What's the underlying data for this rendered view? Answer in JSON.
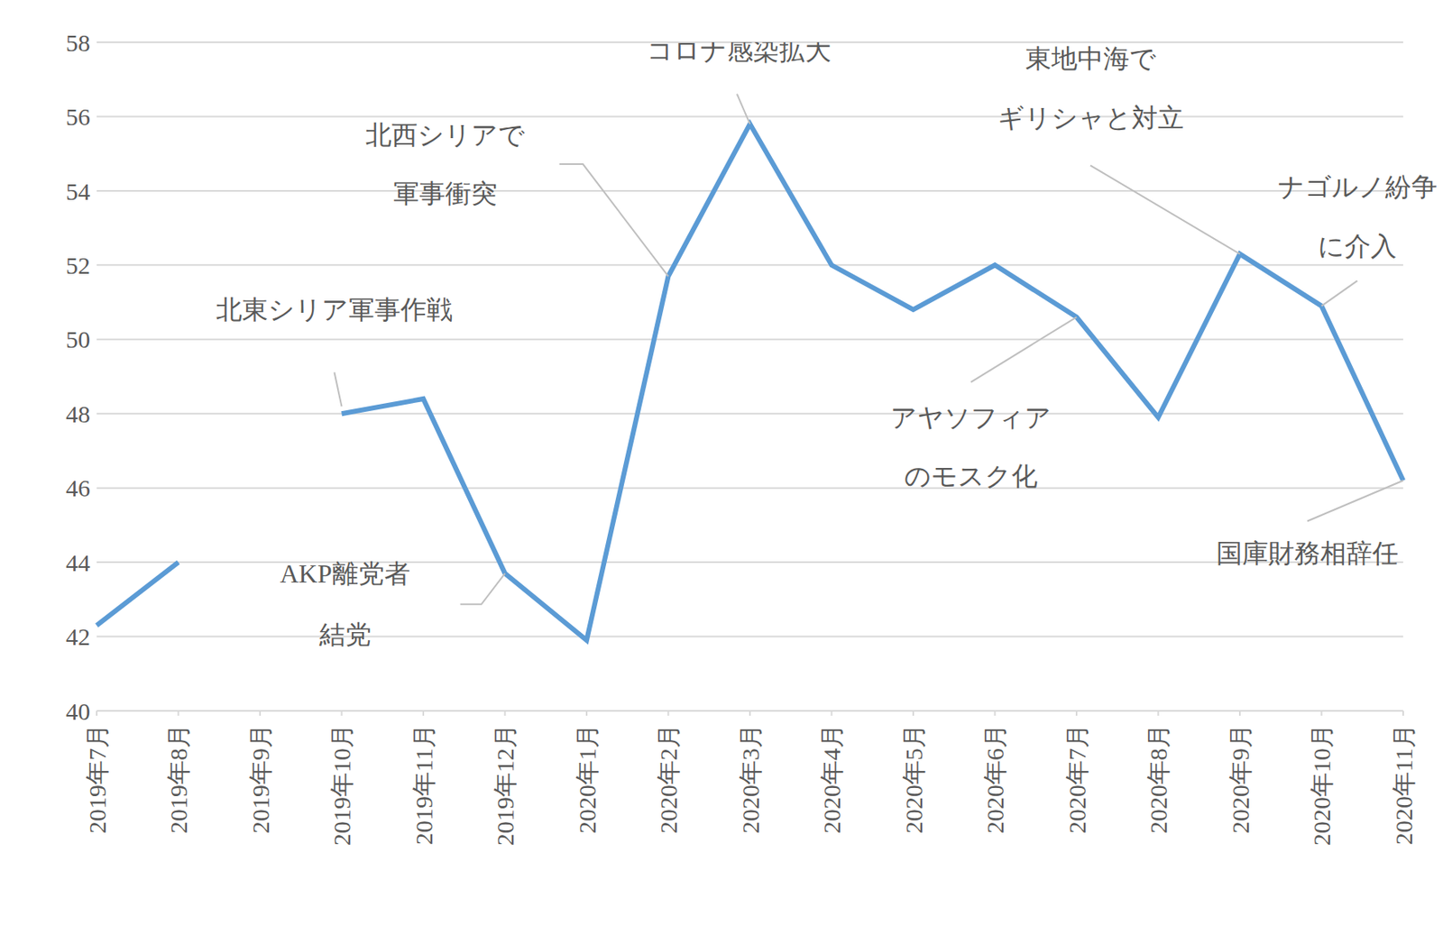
{
  "chart_data": {
    "type": "line",
    "categories": [
      "2019年7月",
      "2019年8月",
      "2019年9月",
      "2019年10月",
      "2019年11月",
      "2019年12月",
      "2020年1月",
      "2020年2月",
      "2020年3月",
      "2020年4月",
      "2020年5月",
      "2020年6月",
      "2020年7月",
      "2020年8月",
      "2020年9月",
      "2020年10月",
      "2020年11月"
    ],
    "values": [
      42.3,
      44.0,
      null,
      48.0,
      48.4,
      43.7,
      41.9,
      51.7,
      55.8,
      52.0,
      50.8,
      52.0,
      50.6,
      47.9,
      52.3,
      50.9,
      46.2
    ],
    "color": "#5b9bd5",
    "ylim": [
      40,
      58
    ],
    "yticks": [
      40,
      42,
      44,
      46,
      48,
      50,
      52,
      54,
      56,
      58
    ],
    "grid": true,
    "annotations": [
      {
        "text": "北東シリア軍事作戦",
        "x": "2019年10月"
      },
      {
        "text": "AKP離党者\n結党",
        "x": "2019年12月"
      },
      {
        "text": "北西シリアで\n軍事衝突",
        "x": "2020年2月"
      },
      {
        "text": "コロナ感染拡大",
        "x": "2020年3月"
      },
      {
        "text": "東地中海で\nギリシャと対立",
        "x": "2020年9月"
      },
      {
        "text": "ナゴルノ紛争\nに介入",
        "x": "2020年10月"
      },
      {
        "text": "アヤソフィア\nのモスク化",
        "x": "2020年7月"
      },
      {
        "text": "国庫財務相辞任",
        "x": "2020年11月"
      }
    ]
  }
}
